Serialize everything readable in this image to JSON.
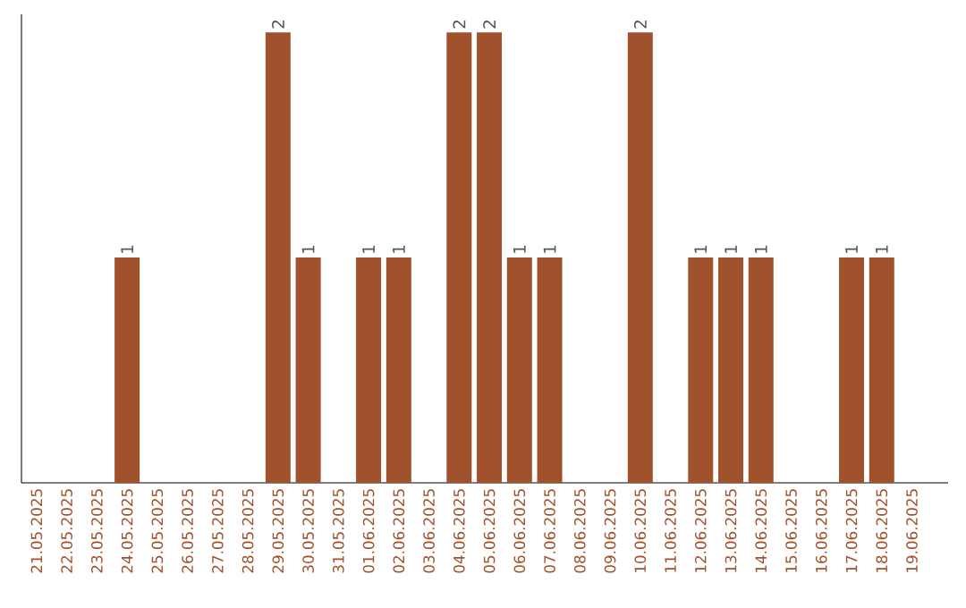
{
  "chart_data": {
    "type": "bar",
    "categories": [
      "21.05.2025",
      "22.05.2025",
      "23.05.2025",
      "24.05.2025",
      "25.05.2025",
      "26.05.2025",
      "27.05.2025",
      "28.05.2025",
      "29.05.2025",
      "30.05.2025",
      "31.05.2025",
      "01.06.2025",
      "02.06.2025",
      "03.06.2025",
      "04.06.2025",
      "05.06.2025",
      "06.06.2025",
      "07.06.2025",
      "08.06.2025",
      "09.06.2025",
      "10.06.2025",
      "11.06.2025",
      "12.06.2025",
      "13.06.2025",
      "14.06.2025",
      "15.06.2025",
      "16.06.2025",
      "17.06.2025",
      "18.06.2025",
      "19.06.2025"
    ],
    "values": [
      0,
      0,
      0,
      1,
      0,
      0,
      0,
      0,
      2,
      1,
      0,
      1,
      1,
      0,
      2,
      2,
      1,
      1,
      0,
      0,
      2,
      0,
      1,
      1,
      1,
      0,
      0,
      1,
      1,
      0
    ],
    "value_labels": [
      null,
      null,
      null,
      "1",
      null,
      null,
      null,
      null,
      "2",
      "1",
      null,
      "1",
      "1",
      null,
      "2",
      "2",
      "1",
      "1",
      null,
      null,
      "2",
      null,
      "1",
      "1",
      "1",
      null,
      null,
      "1",
      "1",
      null
    ],
    "color": "#a0522d",
    "ylim": [
      0,
      2
    ],
    "tick_labels": "x",
    "grid": false
  }
}
